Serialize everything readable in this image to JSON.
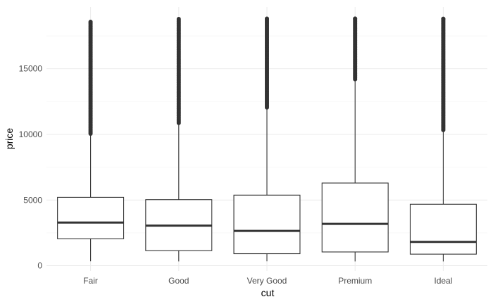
{
  "chart_data": {
    "type": "boxplot",
    "xlabel": "cut",
    "ylabel": "price",
    "ylim": [
      -400,
      19700
    ],
    "yticks": [
      0,
      5000,
      10000,
      15000
    ],
    "grid": true,
    "legend": "none",
    "colors": {
      "box_fill": "#ffffff",
      "box_stroke": "#333333",
      "outlier": "#333333",
      "grid_major": "#ebebeb",
      "grid_minor": "#f5f5f5"
    },
    "categories": [
      "Fair",
      "Good",
      "Very Good",
      "Premium",
      "Ideal"
    ],
    "boxes": [
      {
        "category": "Fair",
        "min": 337,
        "q1": 2050,
        "median": 3282,
        "q3": 5206,
        "whisker_high": 9950,
        "outliers_from": 10050,
        "outliers_to": 18574
      },
      {
        "category": "Good",
        "min": 327,
        "q1": 1145,
        "median": 3050,
        "q3": 5028,
        "whisker_high": 10840,
        "outliers_from": 10870,
        "outliers_to": 18788
      },
      {
        "category": "Very Good",
        "min": 336,
        "q1": 912,
        "median": 2648,
        "q3": 5373,
        "whisker_high": 12020,
        "outliers_from": 12050,
        "outliers_to": 18818
      },
      {
        "category": "Premium",
        "min": 326,
        "q1": 1046,
        "median": 3185,
        "q3": 6296,
        "whisker_high": 14170,
        "outliers_from": 14200,
        "outliers_to": 18823
      },
      {
        "category": "Ideal",
        "min": 326,
        "q1": 878,
        "median": 1810,
        "q3": 4678,
        "whisker_high": 10290,
        "outliers_from": 10330,
        "outliers_to": 18806
      }
    ]
  }
}
